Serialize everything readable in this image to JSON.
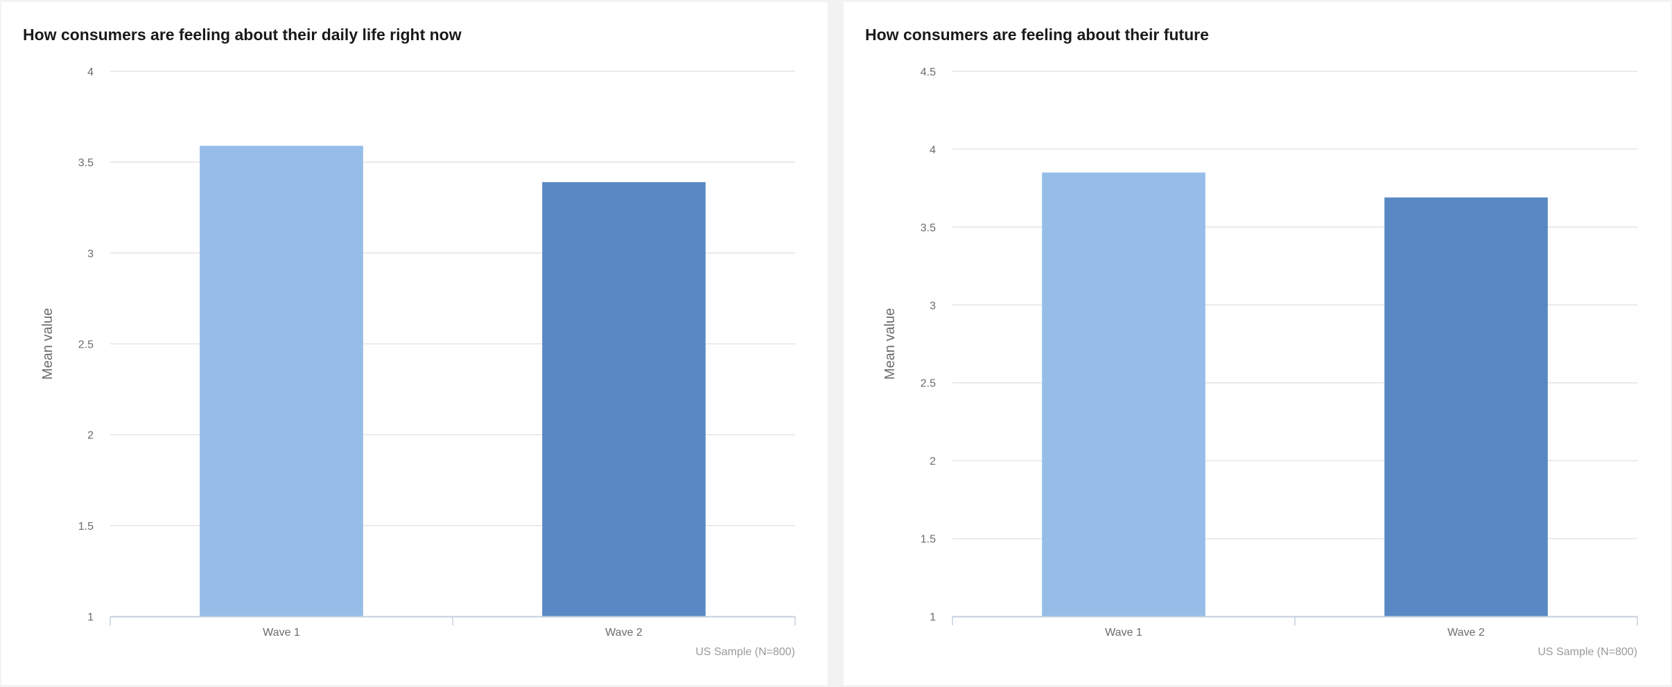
{
  "chart_data": [
    {
      "type": "bar",
      "title": "How consumers are feeling about their daily life right now",
      "categories": [
        "Wave 1",
        "Wave 2"
      ],
      "values": [
        3.59,
        3.39
      ],
      "colors": [
        "#95bde8",
        "#5889c4"
      ],
      "xlabel": "",
      "ylabel": "Mean value",
      "ylim": [
        1,
        4
      ],
      "yticks": [
        "1",
        "1.5",
        "2",
        "2.5",
        "3",
        "3.5",
        "4"
      ],
      "grid": true,
      "credit": "US Sample (N=800)"
    },
    {
      "type": "bar",
      "title": "How consumers are feeling about their future",
      "categories": [
        "Wave 1",
        "Wave 2"
      ],
      "values": [
        3.85,
        3.69
      ],
      "colors": [
        "#95bde8",
        "#5889c4"
      ],
      "xlabel": "",
      "ylabel": "Mean value",
      "ylim": [
        1,
        4.5
      ],
      "yticks": [
        "1",
        "1.5",
        "2",
        "2.5",
        "3",
        "3.5",
        "4",
        "4.5"
      ],
      "grid": true,
      "credit": "US Sample (N=800)"
    }
  ]
}
